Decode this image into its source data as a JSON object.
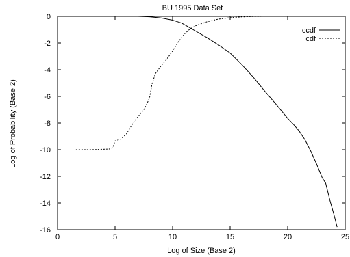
{
  "chart_data": {
    "type": "line",
    "title": "BU 1995 Data Set",
    "xlabel": "Log of Size (Base 2)",
    "ylabel": "Log of Probability (Base 2)",
    "xlim": [
      0,
      25
    ],
    "ylim": [
      -16,
      0
    ],
    "xticks": [
      0,
      5,
      10,
      15,
      20,
      25
    ],
    "yticks": [
      0,
      -2,
      -4,
      -6,
      -8,
      -10,
      -12,
      -14,
      -16
    ],
    "grid": false,
    "legend_position": "top-right",
    "series": [
      {
        "name": "ccdf",
        "line_style": "solid",
        "points": [
          [
            1.6,
            0
          ],
          [
            5,
            0
          ],
          [
            7,
            0
          ],
          [
            8,
            -0.03
          ],
          [
            9,
            -0.12
          ],
          [
            10,
            -0.28
          ],
          [
            10.8,
            -0.5
          ],
          [
            11.5,
            -0.85
          ],
          [
            12,
            -1.1
          ],
          [
            13,
            -1.6
          ],
          [
            14,
            -2.15
          ],
          [
            15,
            -2.75
          ],
          [
            16,
            -3.6
          ],
          [
            17,
            -4.55
          ],
          [
            18,
            -5.6
          ],
          [
            19,
            -6.6
          ],
          [
            20,
            -7.65
          ],
          [
            20.5,
            -8.1
          ],
          [
            21,
            -8.6
          ],
          [
            21.5,
            -9.25
          ],
          [
            22,
            -10.1
          ],
          [
            22.5,
            -11.05
          ],
          [
            23,
            -12.1
          ],
          [
            23.3,
            -12.5
          ],
          [
            23.7,
            -13.9
          ],
          [
            24,
            -14.8
          ],
          [
            24.3,
            -15.8
          ]
        ]
      },
      {
        "name": "cdf",
        "line_style": "dashed",
        "points": [
          [
            1.6,
            -10
          ],
          [
            3,
            -10
          ],
          [
            4.5,
            -9.95
          ],
          [
            4.8,
            -9.85
          ],
          [
            5,
            -9.35
          ],
          [
            5.5,
            -9.2
          ],
          [
            6,
            -8.8
          ],
          [
            6.5,
            -8.1
          ],
          [
            7,
            -7.5
          ],
          [
            7.5,
            -7
          ],
          [
            7.8,
            -6.5
          ],
          [
            8,
            -6.1
          ],
          [
            8.2,
            -5.1
          ],
          [
            8.5,
            -4.3
          ],
          [
            9,
            -3.7
          ],
          [
            9.5,
            -3.2
          ],
          [
            10,
            -2.6
          ],
          [
            10.5,
            -1.9
          ],
          [
            11,
            -1.35
          ],
          [
            11.5,
            -0.95
          ],
          [
            12,
            -0.7
          ],
          [
            13,
            -0.4
          ],
          [
            14,
            -0.2
          ],
          [
            15,
            -0.1
          ],
          [
            16,
            -0.04
          ],
          [
            17,
            -0.01
          ],
          [
            18,
            0
          ],
          [
            20,
            0
          ],
          [
            22,
            0
          ],
          [
            24.3,
            0
          ]
        ]
      }
    ]
  }
}
